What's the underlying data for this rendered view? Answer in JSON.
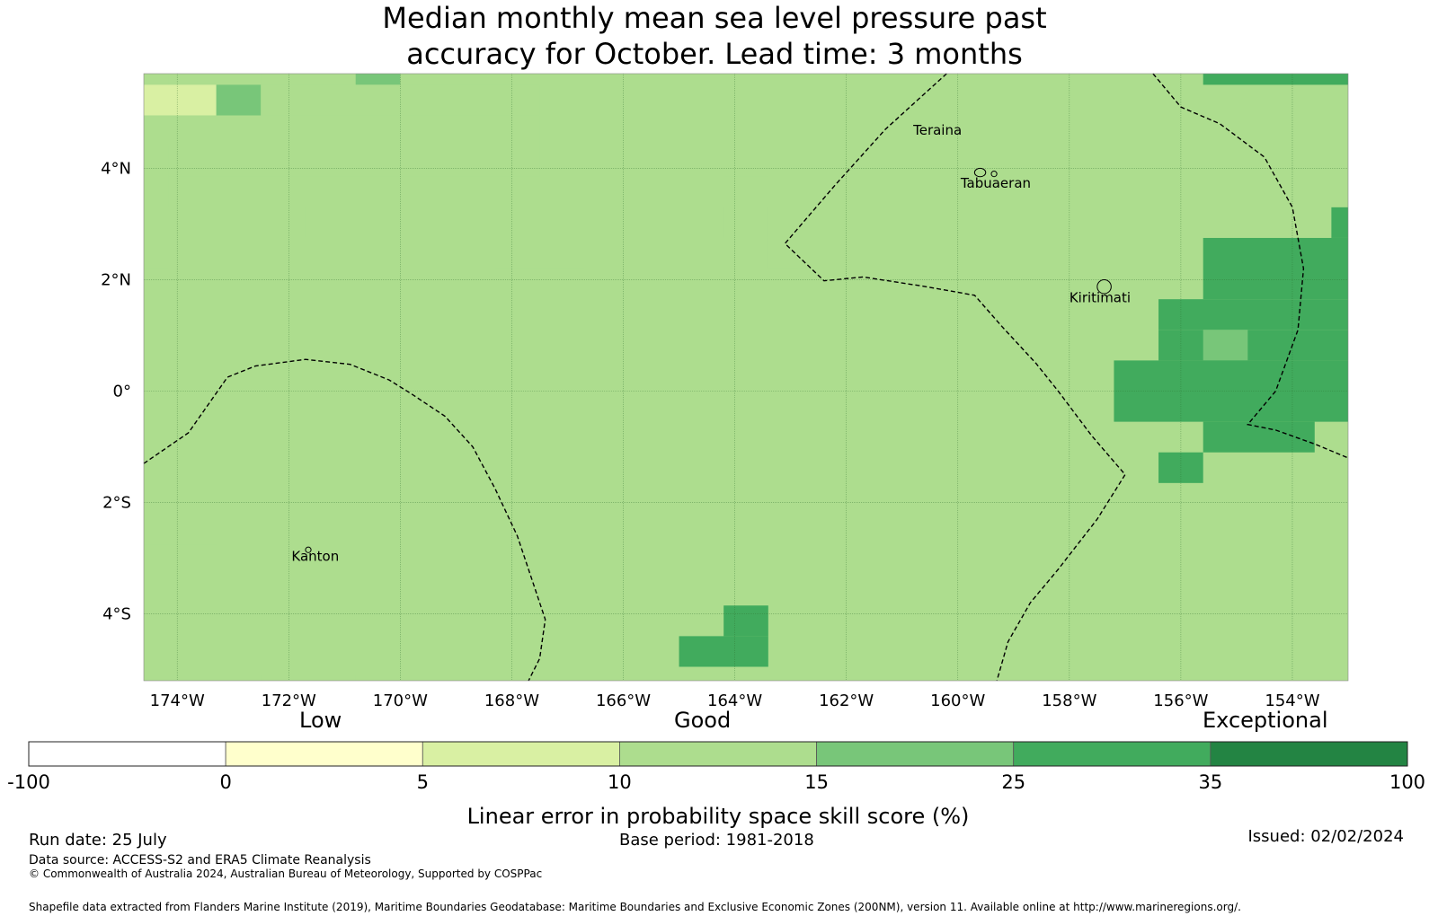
{
  "title_line1": "Median monthly mean sea level pressure past",
  "title_line2": "accuracy for October. Lead time: 3 months",
  "map": {
    "lon_range": [
      -174.6,
      -153.0
    ],
    "lat_range": [
      -5.2,
      5.7
    ],
    "lon_ticks": [
      {
        "value": -174,
        "label": "174°W"
      },
      {
        "value": -172,
        "label": "172°W"
      },
      {
        "value": -170,
        "label": "170°W"
      },
      {
        "value": -168,
        "label": "168°W"
      },
      {
        "value": -166,
        "label": "166°W"
      },
      {
        "value": -164,
        "label": "164°W"
      },
      {
        "value": -162,
        "label": "162°W"
      },
      {
        "value": -160,
        "label": "160°W"
      },
      {
        "value": -158,
        "label": "158°W"
      },
      {
        "value": -156,
        "label": "156°W"
      },
      {
        "value": -154,
        "label": "154°W"
      }
    ],
    "lat_ticks": [
      {
        "value": 4,
        "label": "4°N"
      },
      {
        "value": 2,
        "label": "2°N"
      },
      {
        "value": 0,
        "label": "0°"
      },
      {
        "value": -2,
        "label": "2°S"
      },
      {
        "value": -4,
        "label": "4°S"
      }
    ],
    "base_class": 3,
    "skill_cells": [
      {
        "lon": [
          -174.6,
          -174.16
        ],
        "lat": [
          5.2,
          5.7
        ],
        "class": 3
      },
      {
        "lon": [
          -174.16,
          -172.5
        ],
        "lat": [
          5.2,
          5.7
        ],
        "class": 3
      },
      {
        "lon": [
          -172.5,
          -170.8
        ],
        "lat": [
          5.5,
          5.7
        ],
        "class": 3
      },
      {
        "lon": [
          -170.8,
          -170.0
        ],
        "lat": [
          5.5,
          5.7
        ],
        "class": 4
      },
      {
        "lon": [
          -170.0,
          -169.2
        ],
        "lat": [
          5.5,
          5.7
        ],
        "class": 3
      },
      {
        "lon": [
          -174.6,
          -173.3
        ],
        "lat": [
          4.95,
          5.5
        ],
        "class": 2
      },
      {
        "lon": [
          -173.3,
          -172.5
        ],
        "lat": [
          4.95,
          5.5
        ],
        "class": 4
      },
      {
        "lon": [
          -172.5,
          -167.5
        ],
        "lat": [
          4.95,
          5.5
        ],
        "class": 3
      },
      {
        "lon": [
          -174.6,
          -167.5
        ],
        "lat": [
          4.4,
          4.95
        ],
        "class": 3
      },
      {
        "lon": [
          -174.16,
          -167.5
        ],
        "lat": [
          3.85,
          4.4
        ],
        "class": 3
      },
      {
        "lon": [
          -174.16,
          -168.3
        ],
        "lat": [
          3.3,
          3.85
        ],
        "class": 3
      },
      {
        "lon": [
          -173.3,
          -171.7
        ],
        "lat": [
          2.75,
          3.3
        ],
        "class": 3
      },
      {
        "lon": [
          -174.6,
          -174.16
        ],
        "lat": [
          2.2,
          2.75
        ],
        "class": 3
      },
      {
        "lon": [
          -168.3,
          -166.7
        ],
        "lat": [
          2.2,
          2.75
        ],
        "class": 3
      },
      {
        "lon": [
          -164.2,
          -163.4
        ],
        "lat": [
          3.85,
          4.4
        ],
        "class": 3
      },
      {
        "lon": [
          -165.0,
          -160.8
        ],
        "lat": [
          3.3,
          3.85
        ],
        "class": 3
      },
      {
        "lon": [
          -165.0,
          -164.2
        ],
        "lat": [
          2.75,
          3.3
        ],
        "class": 3
      },
      {
        "lon": [
          -163.4,
          -161.7
        ],
        "lat": [
          2.75,
          3.3
        ],
        "class": 3
      },
      {
        "lon": [
          -163.4,
          -162.5
        ],
        "lat": [
          2.2,
          2.75
        ],
        "class": 3
      },
      {
        "lon": [
          -174.6,
          -173.3
        ],
        "lat": [
          -3.3,
          -2.75
        ],
        "class": 3
      },
      {
        "lon": [
          -172.5,
          -170.8
        ],
        "lat": [
          -5.2,
          -5.1
        ],
        "class": 3
      },
      {
        "lon": [
          -155.6,
          -153.0
        ],
        "lat": [
          5.5,
          5.7
        ],
        "class": 5
      },
      {
        "lon": [
          -153.3,
          -153.0
        ],
        "lat": [
          2.75,
          3.3
        ],
        "class": 5
      },
      {
        "lon": [
          -155.6,
          -153.0
        ],
        "lat": [
          1.65,
          2.75
        ],
        "class": 5
      },
      {
        "lon": [
          -156.4,
          -153.0
        ],
        "lat": [
          1.1,
          1.65
        ],
        "class": 5
      },
      {
        "lon": [
          -156.4,
          -153.0
        ],
        "lat": [
          0.55,
          1.1
        ],
        "class": 5
      },
      {
        "lon": [
          -155.6,
          -154.8
        ],
        "lat": [
          0.55,
          1.1
        ],
        "class": 4
      },
      {
        "lon": [
          -157.2,
          -153.0
        ],
        "lat": [
          -0.55,
          0.55
        ],
        "class": 5
      },
      {
        "lon": [
          -155.6,
          -153.6
        ],
        "lat": [
          -1.1,
          -0.55
        ],
        "class": 5
      },
      {
        "lon": [
          -156.4,
          -155.6
        ],
        "lat": [
          -1.65,
          -1.1
        ],
        "class": 5
      },
      {
        "lon": [
          -164.2,
          -163.4
        ],
        "lat": [
          -4.4,
          -3.85
        ],
        "class": 5
      },
      {
        "lon": [
          -165.0,
          -163.4
        ],
        "lat": [
          -4.95,
          -4.4
        ],
        "class": 5
      }
    ],
    "eez_lines": [
      [
        [
          -174.6,
          -1.3
        ],
        [
          -173.8,
          -0.75
        ],
        [
          -173.1,
          0.25
        ],
        [
          -172.6,
          0.45
        ],
        [
          -171.7,
          0.57
        ],
        [
          -170.9,
          0.48
        ],
        [
          -170.2,
          0.2
        ],
        [
          -169.8,
          -0.05
        ],
        [
          -169.2,
          -0.45
        ],
        [
          -168.7,
          -1.0
        ],
        [
          -168.3,
          -1.75
        ],
        [
          -167.9,
          -2.6
        ],
        [
          -167.6,
          -3.5
        ],
        [
          -167.4,
          -4.1
        ],
        [
          -167.5,
          -4.8
        ],
        [
          -167.7,
          -5.2
        ]
      ],
      [
        [
          -160.2,
          5.7
        ],
        [
          -161.3,
          4.7
        ],
        [
          -162.2,
          3.7
        ],
        [
          -163.1,
          2.65
        ],
        [
          -162.4,
          1.98
        ],
        [
          -161.7,
          2.05
        ],
        [
          -160.6,
          1.88
        ],
        [
          -159.7,
          1.72
        ],
        [
          -159.2,
          1.15
        ],
        [
          -158.6,
          0.5
        ],
        [
          -158.2,
          0.0
        ],
        [
          -157.6,
          -0.8
        ],
        [
          -157.0,
          -1.5
        ],
        [
          -157.5,
          -2.3
        ],
        [
          -158.2,
          -3.2
        ],
        [
          -158.7,
          -3.8
        ],
        [
          -159.1,
          -4.5
        ],
        [
          -159.3,
          -5.2
        ]
      ],
      [
        [
          -156.5,
          5.7
        ],
        [
          -156.0,
          5.1
        ],
        [
          -155.3,
          4.8
        ],
        [
          -154.5,
          4.2
        ],
        [
          -154.0,
          3.3
        ],
        [
          -153.8,
          2.2
        ],
        [
          -153.9,
          1.1
        ],
        [
          -154.3,
          0.0
        ],
        [
          -154.8,
          -0.6
        ],
        [
          -154.3,
          -0.7
        ],
        [
          -153.6,
          -0.95
        ],
        [
          -153.0,
          -1.2
        ]
      ]
    ],
    "islands": [
      {
        "name": "Teraina",
        "label_lon": -160.8,
        "label_lat": 4.6,
        "shape": [
          [
            -159.7,
            4.0
          ],
          [
            -159.5,
            3.85
          ]
        ]
      },
      {
        "name": "Tabuaeran",
        "label_lon": -159.95,
        "label_lat": 3.65,
        "shape": [
          [
            -159.4,
            3.95
          ],
          [
            -159.3,
            3.85
          ]
        ]
      },
      {
        "name": "Kiritimati",
        "label_lon": -158.0,
        "label_lat": 1.6,
        "shape": [
          [
            -157.5,
            2.0
          ],
          [
            -157.25,
            1.75
          ]
        ]
      },
      {
        "name": "Kanton",
        "label_lon": -171.95,
        "label_lat": -3.05,
        "shape": [
          [
            -171.7,
            -2.8
          ],
          [
            -171.6,
            -2.9
          ]
        ]
      }
    ]
  },
  "legend": {
    "category_labels": [
      {
        "label": "Low",
        "at": 3
      },
      {
        "label": "Good",
        "at": 7
      },
      {
        "label": "Exceptional",
        "at": 12.5
      }
    ],
    "boundaries": [
      "-100",
      "0",
      "5",
      "10",
      "15",
      "25",
      "35",
      "100"
    ],
    "colors": [
      "#ffffff",
      "#ffffcc",
      "#d9f0a3",
      "#addd8e",
      "#78c679",
      "#41ab5d",
      "#238443"
    ],
    "axis_label": "Linear error in probability space skill score (%)"
  },
  "footer": {
    "run_date": "Run date: 25 July",
    "base_period": "Base period: 1981-2018",
    "issued": "Issued: 02/02/2024",
    "data_source": "Data source: ACCESS-S2 and ERA5 Climate Reanalysis",
    "copyright": "© Commonwealth of Australia 2024, Australian Bureau of Meteorology, Supported by COSPPac",
    "shapefile": "Shapefile data extracted from Flanders Marine Institute (2019), Maritime Boundaries Geodatabase: Maritime Boundaries and Exclusive Economic Zones (200NM), version 11. Available online at http://www.marineregions.org/."
  }
}
